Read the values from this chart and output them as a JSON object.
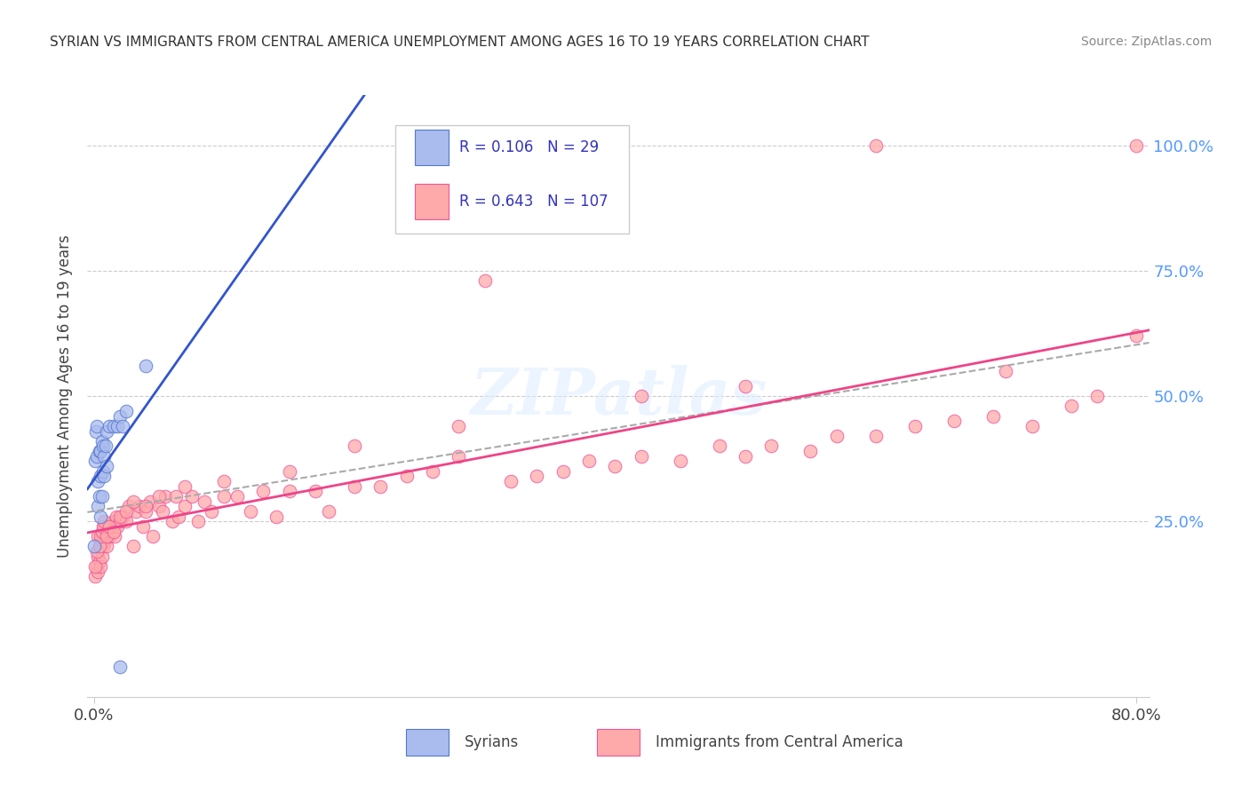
{
  "title": "SYRIAN VS IMMIGRANTS FROM CENTRAL AMERICA UNEMPLOYMENT AMONG AGES 16 TO 19 YEARS CORRELATION CHART",
  "source": "Source: ZipAtlas.com",
  "ylabel": "Unemployment Among Ages 16 to 19 years",
  "background_color": "#ffffff",
  "grid_color": "#cccccc",
  "legend_R1": "0.106",
  "legend_N1": "29",
  "legend_R2": "0.643",
  "legend_N2": "107",
  "legend_color": "#3333bb",
  "syrians_fill": "#aabbee",
  "syrians_edge": "#5577cc",
  "immigrants_fill": "#ffaaaa",
  "immigrants_edge": "#ee5599",
  "syrian_line_color": "#3355cc",
  "immigrant_line_color": "#ee4488",
  "dash_line_color": "#aaaaaa",
  "watermark_color": "#ddeeff",
  "watermark_alpha": 0.55,
  "xlim": [
    -0.005,
    0.81
  ],
  "ylim": [
    -0.1,
    1.1
  ],
  "xticks": [
    0.0,
    0.8
  ],
  "xtick_labels": [
    "0.0%",
    "80.0%"
  ],
  "yticks": [
    0.25,
    0.5,
    0.75,
    1.0
  ],
  "ytick_labels": [
    "25.0%",
    "50.0%",
    "75.0%",
    "100.0%"
  ],
  "right_tick_color": "#5599ff",
  "sx": [
    0.0005,
    0.001,
    0.0015,
    0.002,
    0.002,
    0.003,
    0.003,
    0.004,
    0.004,
    0.005,
    0.005,
    0.005,
    0.006,
    0.006,
    0.007,
    0.007,
    0.008,
    0.008,
    0.009,
    0.01,
    0.01,
    0.012,
    0.015,
    0.018,
    0.02,
    0.022,
    0.025,
    0.04,
    0.02
  ],
  "sy": [
    0.2,
    0.37,
    0.43,
    0.38,
    0.44,
    0.28,
    0.33,
    0.3,
    0.39,
    0.26,
    0.34,
    0.39,
    0.3,
    0.41,
    0.35,
    0.4,
    0.34,
    0.38,
    0.4,
    0.36,
    0.43,
    0.44,
    0.44,
    0.44,
    0.46,
    0.44,
    0.47,
    0.56,
    -0.04
  ],
  "ix": [
    0.001,
    0.002,
    0.003,
    0.003,
    0.004,
    0.005,
    0.005,
    0.006,
    0.006,
    0.007,
    0.007,
    0.008,
    0.008,
    0.009,
    0.01,
    0.01,
    0.012,
    0.013,
    0.014,
    0.015,
    0.016,
    0.017,
    0.018,
    0.02,
    0.022,
    0.025,
    0.027,
    0.03,
    0.032,
    0.035,
    0.038,
    0.04,
    0.043,
    0.045,
    0.05,
    0.053,
    0.055,
    0.06,
    0.063,
    0.065,
    0.07,
    0.075,
    0.08,
    0.085,
    0.09,
    0.1,
    0.11,
    0.12,
    0.13,
    0.14,
    0.15,
    0.17,
    0.18,
    0.2,
    0.22,
    0.24,
    0.26,
    0.28,
    0.3,
    0.32,
    0.34,
    0.36,
    0.38,
    0.4,
    0.42,
    0.45,
    0.48,
    0.5,
    0.52,
    0.55,
    0.57,
    0.6,
    0.63,
    0.66,
    0.69,
    0.72,
    0.75,
    0.77,
    0.8,
    0.001,
    0.002,
    0.003,
    0.004,
    0.005,
    0.006,
    0.007,
    0.008,
    0.01,
    0.012,
    0.015,
    0.02,
    0.025,
    0.03,
    0.04,
    0.05,
    0.07,
    0.1,
    0.15,
    0.2,
    0.28,
    0.35,
    0.42,
    0.5,
    0.6,
    0.7,
    0.8
  ],
  "iy": [
    0.14,
    0.16,
    0.15,
    0.18,
    0.17,
    0.16,
    0.21,
    0.18,
    0.22,
    0.2,
    0.23,
    0.21,
    0.24,
    0.22,
    0.2,
    0.23,
    0.22,
    0.24,
    0.23,
    0.25,
    0.22,
    0.26,
    0.24,
    0.25,
    0.26,
    0.25,
    0.28,
    0.2,
    0.27,
    0.28,
    0.24,
    0.27,
    0.29,
    0.22,
    0.28,
    0.27,
    0.3,
    0.25,
    0.3,
    0.26,
    0.28,
    0.3,
    0.25,
    0.29,
    0.27,
    0.3,
    0.3,
    0.27,
    0.31,
    0.26,
    0.31,
    0.31,
    0.27,
    0.32,
    0.32,
    0.34,
    0.35,
    0.38,
    0.73,
    0.33,
    0.34,
    0.35,
    0.37,
    0.36,
    0.38,
    0.37,
    0.4,
    0.38,
    0.4,
    0.39,
    0.42,
    0.42,
    0.44,
    0.45,
    0.46,
    0.44,
    0.48,
    0.5,
    0.62,
    0.16,
    0.19,
    0.22,
    0.2,
    0.22,
    0.23,
    0.24,
    0.25,
    0.22,
    0.24,
    0.23,
    0.26,
    0.27,
    0.29,
    0.28,
    0.3,
    0.32,
    0.33,
    0.35,
    0.4,
    0.44,
    1.0,
    0.5,
    0.52,
    1.0,
    0.55,
    1.0
  ]
}
